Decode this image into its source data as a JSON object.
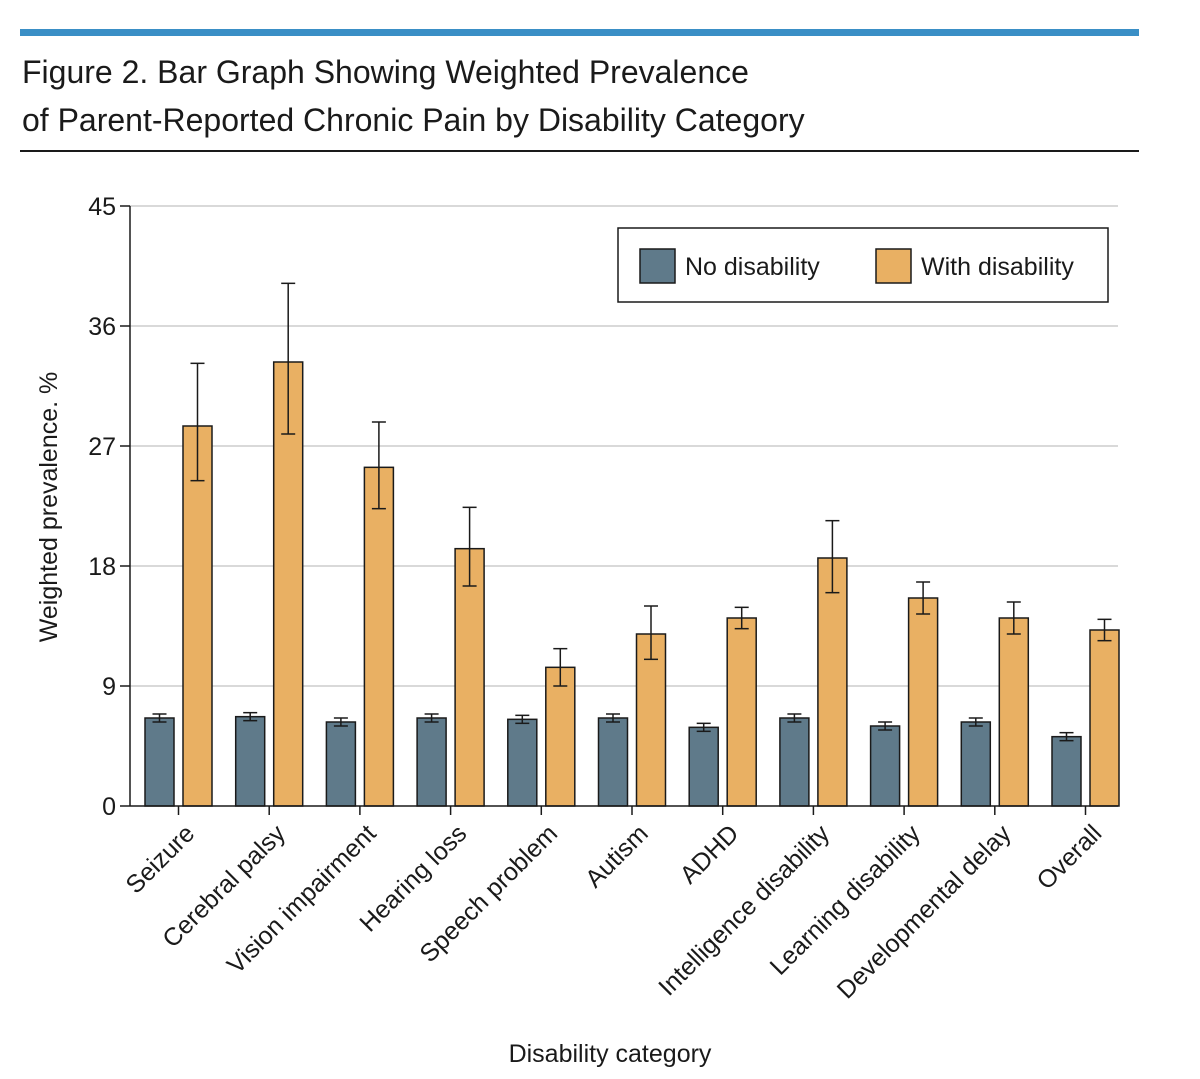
{
  "figure": {
    "title_line1": "Figure 2. Bar Graph Showing Weighted Prevalence",
    "title_line2": "of Parent-Reported Chronic Pain by Disability Category"
  },
  "colors": {
    "accent_rule": "#3a8fc6",
    "no_disability": "#5f7a8a",
    "with_disability": "#e9b063",
    "grid": "#d9d9d9",
    "axis": "#1a1a1a"
  },
  "chart_data": {
    "type": "bar",
    "title": "",
    "xlabel": "Disability category",
    "ylabel": "Weighted prevalence. %",
    "ylim": [
      0,
      45
    ],
    "yticks": [
      0,
      9,
      18,
      27,
      36,
      45
    ],
    "grid": true,
    "legend_position": "top-right",
    "categories": [
      "Seizure",
      "Cerebral palsy",
      "Vision impairment",
      "Hearing loss",
      "Speech problem",
      "Autism",
      "ADHD",
      "Intelligence disability",
      "Learning disability",
      "Developmental delay",
      "Overall"
    ],
    "series": [
      {
        "name": "No disability",
        "color": "#5f7a8a",
        "values": [
          6.6,
          6.7,
          6.3,
          6.6,
          6.5,
          6.6,
          5.9,
          6.6,
          6.0,
          6.3,
          5.2
        ],
        "err_low": [
          6.3,
          6.4,
          6.0,
          6.3,
          6.2,
          6.3,
          5.6,
          6.3,
          5.7,
          6.0,
          4.9
        ],
        "err_high": [
          6.9,
          7.0,
          6.6,
          6.9,
          6.8,
          6.9,
          6.2,
          6.9,
          6.3,
          6.6,
          5.5
        ]
      },
      {
        "name": "With disability",
        "color": "#e9b063",
        "values": [
          28.5,
          33.3,
          25.4,
          19.3,
          10.4,
          12.9,
          14.1,
          18.6,
          15.6,
          14.1,
          13.2
        ],
        "err_low": [
          24.4,
          27.9,
          22.3,
          16.5,
          9.0,
          11.0,
          13.3,
          16.0,
          14.4,
          12.9,
          12.4
        ],
        "err_high": [
          33.2,
          39.2,
          28.8,
          22.4,
          11.8,
          15.0,
          14.9,
          21.4,
          16.8,
          15.3,
          14.0
        ]
      }
    ]
  }
}
